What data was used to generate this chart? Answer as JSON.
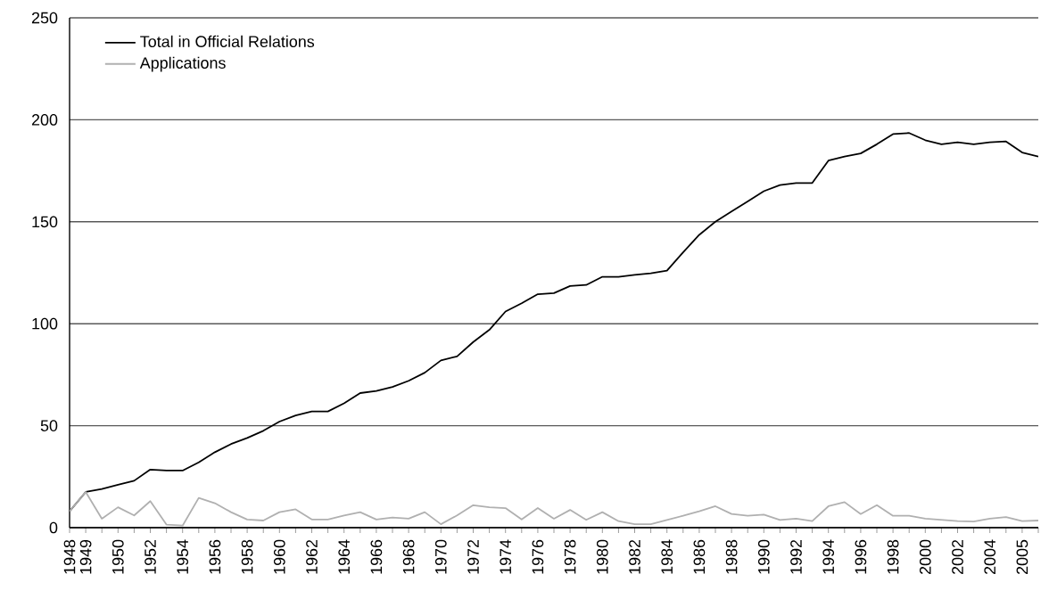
{
  "chart_data": {
    "type": "line",
    "categories": [
      "1948",
      "1949",
      null,
      "1950",
      null,
      "1952",
      null,
      "1954",
      null,
      "1956",
      null,
      "1958",
      null,
      "1960",
      null,
      "1962",
      null,
      "1964",
      null,
      "1966",
      null,
      "1968",
      null,
      "1970",
      null,
      "1972",
      null,
      "1974",
      null,
      "1976",
      null,
      "1978",
      null,
      "1980",
      null,
      "1982",
      null,
      "1984",
      null,
      "1986",
      null,
      "1988",
      null,
      "1990",
      null,
      "1992",
      null,
      "1994",
      null,
      "1996",
      null,
      "1998",
      null,
      "2000",
      null,
      "2002",
      null,
      "2004",
      null,
      "2005",
      null
    ],
    "series": [
      {
        "name": "Total in Official Relations",
        "color": "#000000",
        "values": [
          8,
          17.5,
          19,
          21,
          23,
          28.5,
          28,
          28,
          32,
          37,
          41,
          44,
          47.5,
          52,
          55,
          57,
          57,
          61,
          66,
          67,
          69,
          72,
          76,
          82,
          84,
          91,
          97,
          106,
          110,
          114.5,
          115,
          118.5,
          119,
          123,
          123,
          124,
          124.7,
          126,
          135,
          143.6,
          150,
          155,
          160,
          165,
          168,
          169,
          169,
          180,
          182,
          183.5,
          188,
          193,
          193.5,
          190,
          188,
          189,
          188,
          189,
          189.4,
          184,
          182
        ]
      },
      {
        "name": "Applications",
        "color": "#b0b0b0",
        "values": [
          8,
          17.5,
          4.4,
          10,
          6,
          13,
          1.5,
          1,
          14.6,
          12,
          7.6,
          4,
          3.5,
          7.6,
          9,
          4,
          4,
          6,
          7.6,
          4,
          5,
          4.4,
          7.6,
          1.7,
          6,
          11,
          10,
          9.6,
          4,
          9.6,
          4.4,
          8.7,
          3.8,
          7.6,
          3.2,
          1.7,
          1.7,
          3.8,
          5.8,
          8,
          10.5,
          6.7,
          5.8,
          6.4,
          3.8,
          4.4,
          3.2,
          10.5,
          12.5,
          6.7,
          11,
          5.8,
          5.8,
          4.4,
          3.8,
          3.2,
          3,
          4.4,
          5.2,
          3.2,
          3.5
        ]
      }
    ],
    "ylim": [
      0,
      250
    ],
    "yticks": [
      0,
      50,
      100,
      150,
      200,
      250
    ],
    "grid": "y",
    "legend": "top left"
  }
}
